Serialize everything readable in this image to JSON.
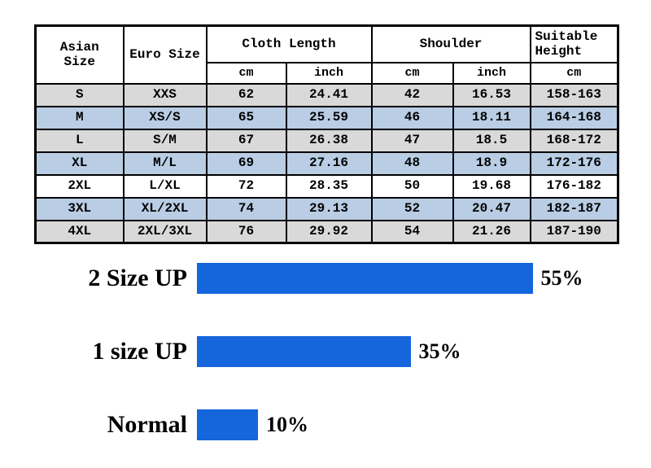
{
  "chart_data": [
    {
      "type": "table",
      "header": {
        "asian_size": "Asian Size",
        "euro_size": "Euro Size",
        "cloth_length": "Cloth Length",
        "shoulder": "Shoulder",
        "suitable_height": "Suitable Height"
      },
      "subheader": [
        "cm",
        "inch",
        "cm",
        "inch",
        "cm"
      ],
      "columns": [
        "Asian Size",
        "Euro Size",
        "Cloth Length (cm)",
        "Cloth Length (inch)",
        "Shoulder (cm)",
        "Shoulder (inch)",
        "Suitable Height (cm)"
      ],
      "rows": [
        [
          "S",
          "XXS",
          "62",
          "24.41",
          "42",
          "16.53",
          "158-163"
        ],
        [
          "M",
          "XS/S",
          "65",
          "25.59",
          "46",
          "18.11",
          "164-168"
        ],
        [
          "L",
          "S/M",
          "67",
          "26.38",
          "47",
          "18.5",
          "168-172"
        ],
        [
          "XL",
          "M/L",
          "69",
          "27.16",
          "48",
          "18.9",
          "172-176"
        ],
        [
          "2XL",
          "L/XL",
          "72",
          "28.35",
          "50",
          "19.68",
          "176-182"
        ],
        [
          "3XL",
          "XL/2XL",
          "74",
          "29.13",
          "52",
          "20.47",
          "182-187"
        ],
        [
          "4XL",
          "2XL/3XL",
          "76",
          "29.92",
          "54",
          "21.26",
          "187-190"
        ]
      ],
      "row_bg": [
        "#d9d9d9",
        "#b9cde4",
        "#d9d9d9",
        "#b9cde4",
        "#ffffff",
        "#b9cde4",
        "#d9d9d9"
      ]
    },
    {
      "type": "bar",
      "orientation": "horizontal",
      "categories": [
        "2 Size UP",
        "1 size UP",
        "Normal"
      ],
      "values": [
        55,
        35,
        10
      ],
      "value_labels": [
        "55%",
        "35%",
        "10%"
      ],
      "xlim": [
        0,
        60
      ],
      "grid": false,
      "legend": "none"
    }
  ],
  "colors": {
    "bar_blue": "#1565dd",
    "row_gray": "#d9d9d9",
    "row_blue": "#b9cde4",
    "table_border": "#000000"
  }
}
